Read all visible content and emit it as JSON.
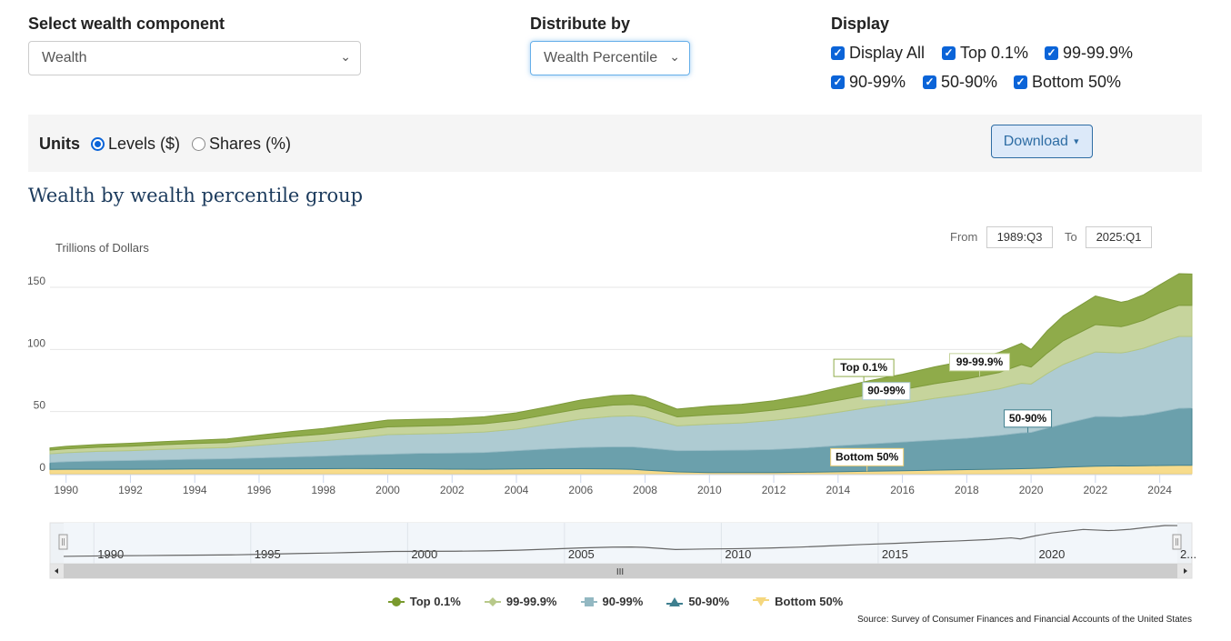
{
  "controls": {
    "component": {
      "label": "Select wealth component",
      "value": "Wealth"
    },
    "distribute": {
      "label": "Distribute by",
      "value": "Wealth Percentile"
    },
    "display": {
      "label": "Display",
      "options": [
        {
          "label": "Display All",
          "checked": true
        },
        {
          "label": "Top 0.1%",
          "checked": true
        },
        {
          "label": "99-99.9%",
          "checked": true
        },
        {
          "label": "90-99%",
          "checked": true
        },
        {
          "label": "50-90%",
          "checked": true
        },
        {
          "label": "Bottom 50%",
          "checked": true
        }
      ]
    }
  },
  "units": {
    "label": "Units",
    "options": [
      {
        "label": "Levels ($)",
        "selected": true
      },
      {
        "label": "Shares (%)",
        "selected": false
      }
    ]
  },
  "download": {
    "label": "Download",
    "icon": "caret-down-icon"
  },
  "range": {
    "from_label": "From",
    "from_value": "1989:Q3",
    "to_label": "To",
    "to_value": "2025:Q1"
  },
  "navigator": {
    "labels": [
      "1990",
      "1995",
      "2000",
      "2005",
      "2010",
      "2015",
      "2020",
      "2..."
    ],
    "scroll_grip": "III"
  },
  "source": "Source: Survey of Consumer Finances and Financial Accounts of the United States",
  "chart_data": {
    "type": "area",
    "stacked": true,
    "title": "Wealth by wealth percentile group",
    "ylabel": "Trillions of Dollars",
    "xlabel": "",
    "ylim": [
      0,
      160
    ],
    "yticks": [
      0,
      50,
      100,
      150
    ],
    "xlim": [
      1989.5,
      2025.0
    ],
    "xticks": [
      "1990",
      "1992",
      "1994",
      "1996",
      "1998",
      "2000",
      "2002",
      "2004",
      "2006",
      "2008",
      "2010",
      "2012",
      "2014",
      "2016",
      "2018",
      "2020",
      "2022",
      "2024"
    ],
    "grid": true,
    "legend_position": "bottom",
    "x": [
      1989.5,
      1990,
      1991,
      1992,
      1993,
      1994,
      1995,
      1996,
      1997,
      1998,
      1999,
      2000,
      2001,
      2002,
      2003,
      2004,
      2005,
      2006,
      2007,
      2007.6,
      2008,
      2009,
      2010,
      2011,
      2012,
      2013,
      2014,
      2015,
      2016,
      2017,
      2018,
      2019,
      2019.7,
      2020,
      2020.5,
      2021,
      2022,
      2022.8,
      2023,
      2023.5,
      2024,
      2024.6,
      2025
    ],
    "series": [
      {
        "name": "Bottom 50%",
        "color": "#f7dc8c",
        "values": [
          3.5,
          3.6,
          3.6,
          3.6,
          3.7,
          3.8,
          3.8,
          3.8,
          3.9,
          4.0,
          4.1,
          4.0,
          3.9,
          3.7,
          3.6,
          3.8,
          4.0,
          4.0,
          3.8,
          3.6,
          2.8,
          1.5,
          0.9,
          0.9,
          0.9,
          1.2,
          1.6,
          2.0,
          2.4,
          2.8,
          3.3,
          3.7,
          4.0,
          4.2,
          4.6,
          5.2,
          6.0,
          6.3,
          6.2,
          6.4,
          6.6,
          6.8,
          6.8
        ]
      },
      {
        "name": "50-90%",
        "color": "#6ba0ac",
        "values": [
          5.5,
          6.0,
          6.6,
          7.0,
          7.4,
          7.8,
          8.2,
          8.9,
          9.5,
          10.2,
          11.0,
          11.6,
          12.5,
          12.9,
          13.4,
          14.7,
          15.9,
          17.0,
          17.8,
          18.0,
          18.0,
          17.0,
          17.8,
          18.0,
          18.6,
          19.6,
          20.9,
          22.0,
          23.0,
          24.2,
          25.2,
          27.0,
          28.8,
          29.0,
          32.0,
          34.8,
          40.0,
          39.4,
          40.0,
          40.8,
          43.0,
          45.8,
          46.1
        ]
      },
      {
        "name": "90-99%",
        "color": "#aecbd2",
        "values": [
          7.0,
          7.3,
          7.8,
          8.0,
          8.5,
          8.8,
          9.0,
          10.3,
          11.5,
          12.3,
          13.6,
          15.9,
          15.6,
          16.0,
          16.6,
          17.4,
          20.0,
          22.9,
          24.6,
          25.0,
          24.8,
          20.0,
          21.2,
          22.0,
          23.5,
          25.0,
          27.0,
          29.5,
          31.3,
          33.6,
          35.5,
          37.5,
          40.0,
          39.0,
          44.0,
          48.0,
          52.0,
          51.5,
          51.8,
          53.8,
          56.0,
          57.9,
          57.6
        ]
      },
      {
        "name": "99-99.9%",
        "color": "#c6d49c",
        "values": [
          3.0,
          3.1,
          3.3,
          3.5,
          3.7,
          3.9,
          4.1,
          4.6,
          5.0,
          5.4,
          5.9,
          6.2,
          6.3,
          6.4,
          6.6,
          7.2,
          7.8,
          8.4,
          9.0,
          9.1,
          8.8,
          7.2,
          7.5,
          7.8,
          8.2,
          8.9,
          9.6,
          10.2,
          11.0,
          11.8,
          12.4,
          13.2,
          15.0,
          13.6,
          16.5,
          19.0,
          22.0,
          21.2,
          21.5,
          22.5,
          24.0,
          25.0,
          25.0
        ]
      },
      {
        "name": "Top 0.1%",
        "color": "#8fab4a",
        "values": [
          1.8,
          2.0,
          2.2,
          2.4,
          2.5,
          2.6,
          2.9,
          3.4,
          4.0,
          4.5,
          5.2,
          5.5,
          5.5,
          5.4,
          5.6,
          5.9,
          6.3,
          7.0,
          7.6,
          7.8,
          7.5,
          6.3,
          7.0,
          7.2,
          7.5,
          8.5,
          10.1,
          11.3,
          12.3,
          13.6,
          14.6,
          16.1,
          17.2,
          14.2,
          17.9,
          20.0,
          23.0,
          19.6,
          19.5,
          20.5,
          22.4,
          25.5,
          25.2
        ]
      }
    ],
    "annotations": [
      {
        "text": "Top 0.1%",
        "x": 2014.8,
        "series": "Top 0.1%"
      },
      {
        "text": "99-99.9%",
        "x": 2018.4,
        "series": "99-99.9%"
      },
      {
        "text": "90-99%",
        "x": 2015.5,
        "series": "90-99%"
      },
      {
        "text": "50-90%",
        "x": 2019.9,
        "series": "50-90%"
      },
      {
        "text": "Bottom 50%",
        "x": 2014.9,
        "series": "Bottom 50%"
      }
    ]
  },
  "legend_icons": [
    "circle-marker-icon",
    "diamond-marker-icon",
    "square-marker-icon",
    "triangle-marker-icon",
    "triangle-down-marker-icon"
  ]
}
